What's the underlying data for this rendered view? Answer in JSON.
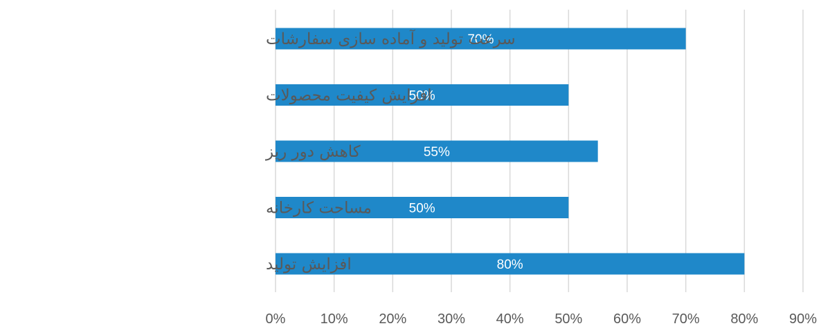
{
  "chart_data": {
    "type": "bar",
    "orientation": "horizontal",
    "categories": [
      "سرعت تولید و آماده سازی سفارشات",
      "افزایش کیفیت محصولات",
      "کاهش دور ریز",
      "مساحت کارخانه",
      "افزایش تولید"
    ],
    "values": [
      70,
      50,
      55,
      50,
      80
    ],
    "data_labels": [
      "70%",
      "50%",
      "55%",
      "50%",
      "80%"
    ],
    "x_ticks": [
      0,
      10,
      20,
      30,
      40,
      50,
      60,
      70,
      80,
      90
    ],
    "x_tick_labels": [
      "0%",
      "10%",
      "20%",
      "30%",
      "40%",
      "50%",
      "60%",
      "70%",
      "80%",
      "90%"
    ],
    "xlim": [
      0,
      90
    ],
    "grid": "vertical",
    "legend": "none",
    "bar_color": "#1f88c9",
    "title": "",
    "xlabel": "",
    "ylabel": ""
  }
}
